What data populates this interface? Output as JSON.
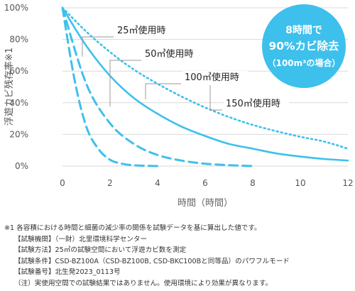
{
  "chart_data": {
    "type": "line",
    "title": "",
    "xlabel": "時間（時間）",
    "ylabel": "浮遊カビ残存率※1",
    "xlim": [
      0,
      12
    ],
    "ylim": [
      0,
      100
    ],
    "x_ticks": [
      "0",
      "2",
      "4",
      "6",
      "8",
      "10",
      "12"
    ],
    "y_ticks": [
      "0%",
      "20%",
      "40%",
      "60%",
      "80%",
      "100%"
    ],
    "grid": "horizontal",
    "series": [
      {
        "name": "25㎥使用時",
        "style": "dashed",
        "x": [
          0,
          0.5,
          1,
          1.5,
          2,
          2.5,
          3,
          3.5,
          4
        ],
        "y": [
          100,
          55,
          25,
          11,
          4,
          1.5,
          0.5,
          0.2,
          0
        ]
      },
      {
        "name": "50㎥使用時",
        "style": "dashed",
        "x": [
          0,
          1,
          2,
          3,
          4,
          5,
          6,
          7,
          8
        ],
        "y": [
          100,
          52,
          27,
          14,
          7,
          3.5,
          1.5,
          0.6,
          0
        ]
      },
      {
        "name": "100㎥使用時",
        "style": "solid",
        "x": [
          0,
          1,
          2,
          3,
          4,
          5,
          6,
          7,
          8,
          9,
          10,
          11,
          12
        ],
        "y": [
          100,
          76,
          57,
          43,
          33,
          25,
          19,
          14,
          11,
          8,
          6,
          4.5,
          3.5
        ]
      },
      {
        "name": "150㎥使用時",
        "style": "dotted",
        "x": [
          0,
          1,
          2,
          3,
          4,
          5,
          6,
          7,
          8,
          9,
          10,
          11,
          12
        ],
        "y": [
          100,
          85,
          72,
          61,
          52,
          44,
          37,
          31,
          26,
          22,
          18.5,
          15.5,
          11
        ]
      }
    ],
    "annotations": {
      "badge_line1": "8時間で",
      "badge_line2": "90%カビ除去",
      "badge_line3": "（100m³の場合）"
    },
    "colors": {
      "line": "#3dc0ec",
      "badge": "#3dc0ec",
      "badge_text": "#ffffff",
      "grid": "#d9d9d9"
    }
  },
  "footnote": [
    "※1 各容積における時間と細菌の減少率の関係を試験データを基に算出した値です。",
    "【試験機関】（一財）北里環境科学センター",
    "【試験方法】25㎥の試験空間において浮遊カビ数を測定",
    "【試験条件】CSD-BZ100A（CSD-BZ100B, CSD-BKC100Bと同等品）のパワフルモード",
    "【試験番号】北生発2023_0113号",
    "（注）実使用空間での試験結果ではありません。使用環境により効果が異なります。"
  ]
}
